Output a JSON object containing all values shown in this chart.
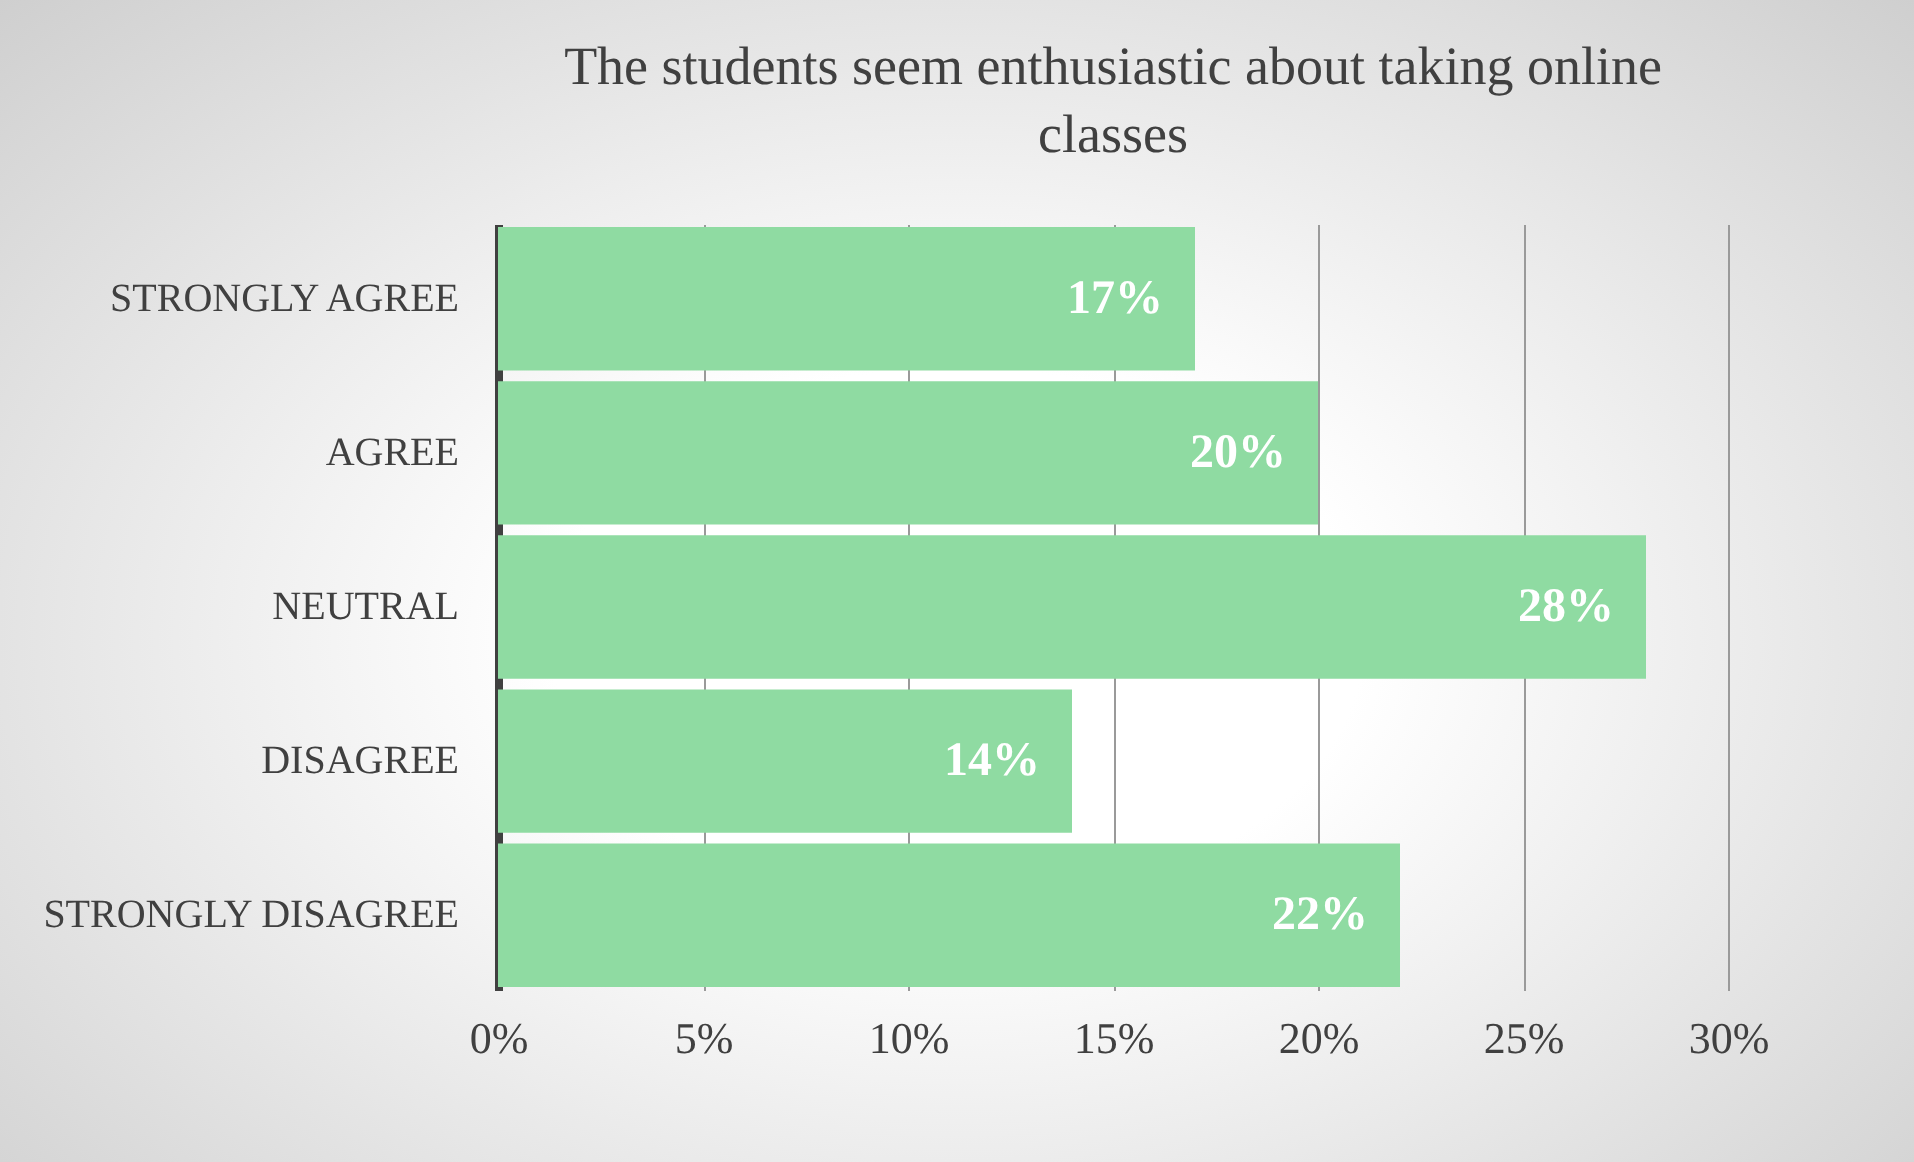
{
  "chart_data": {
    "type": "bar",
    "orientation": "horizontal",
    "title": "The students seem enthusiastic about taking online classes",
    "categories": [
      "STRONGLY AGREE",
      "AGREE",
      "NEUTRAL",
      "DISAGREE",
      "STRONGLY DISAGREE"
    ],
    "values": [
      17,
      20,
      28,
      14,
      22
    ],
    "color": "#8fdba2",
    "value_labels": [
      "17%",
      "20%",
      "28%",
      "14%",
      "22%"
    ],
    "xlim": [
      0,
      30
    ],
    "xticks": [
      {
        "value": 0,
        "label": "0%"
      },
      {
        "value": 5,
        "label": "5%"
      },
      {
        "value": 10,
        "label": "10%"
      },
      {
        "value": 15,
        "label": "15%"
      },
      {
        "value": 20,
        "label": "20%"
      },
      {
        "value": 25,
        "label": "25%"
      },
      {
        "value": 30,
        "label": "30%"
      }
    ],
    "grid": "x"
  }
}
